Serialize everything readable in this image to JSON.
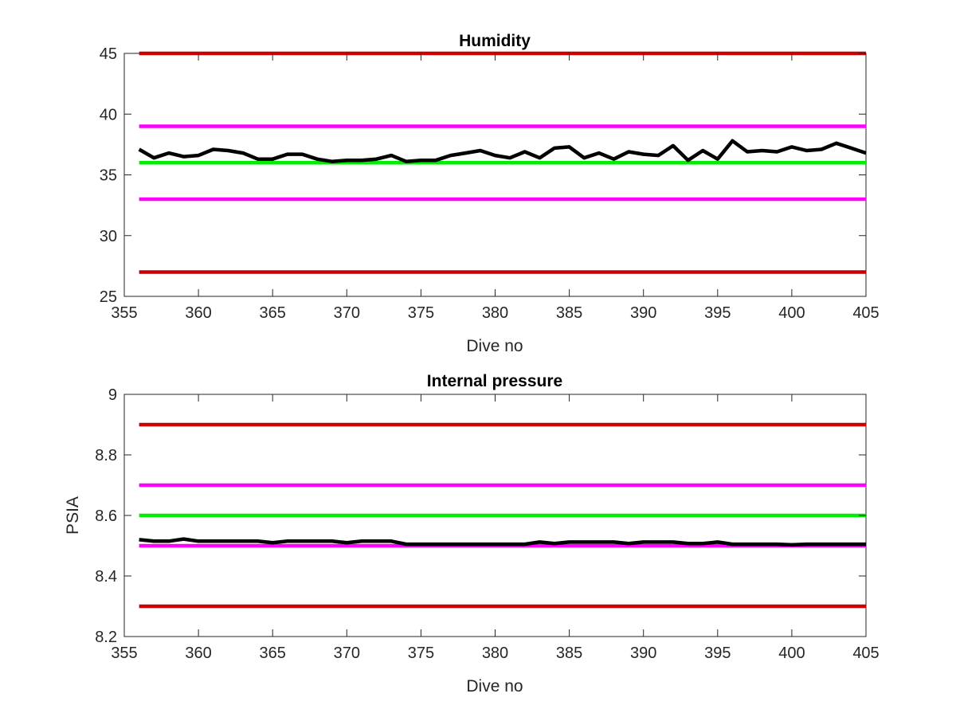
{
  "chart_data": [
    {
      "type": "line",
      "title": "Humidity",
      "xlabel": "Dive no",
      "ylabel": "",
      "xlim": [
        355,
        405
      ],
      "ylim": [
        25,
        45
      ],
      "xticks": [
        355,
        360,
        365,
        370,
        375,
        380,
        385,
        390,
        395,
        400,
        405
      ],
      "yticks": [
        25,
        30,
        35,
        40,
        45
      ],
      "grid": false,
      "legend": "none",
      "thresholds": [
        {
          "value": 45,
          "color": "#cc0000"
        },
        {
          "value": 39,
          "color": "#ff00ff"
        },
        {
          "value": 36,
          "color": "#00ee00"
        },
        {
          "value": 33,
          "color": "#ff00ff"
        },
        {
          "value": 27,
          "color": "#cc0000"
        }
      ],
      "series": [
        {
          "color": "#000000",
          "x": [
            356,
            357,
            358,
            359,
            360,
            361,
            362,
            363,
            364,
            365,
            366,
            367,
            368,
            369,
            370,
            371,
            372,
            373,
            374,
            375,
            376,
            377,
            378,
            379,
            380,
            381,
            382,
            383,
            384,
            385,
            386,
            387,
            388,
            389,
            390,
            391,
            392,
            393,
            394,
            395,
            396,
            397,
            398,
            399,
            400,
            401,
            402,
            403,
            404,
            405
          ],
          "y": [
            37.1,
            36.4,
            36.8,
            36.5,
            36.6,
            37.1,
            37.0,
            36.8,
            36.3,
            36.3,
            36.7,
            36.7,
            36.3,
            36.1,
            36.2,
            36.2,
            36.3,
            36.6,
            36.1,
            36.2,
            36.2,
            36.6,
            36.8,
            37.0,
            36.6,
            36.4,
            36.9,
            36.4,
            37.2,
            37.3,
            36.4,
            36.8,
            36.3,
            36.9,
            36.7,
            36.6,
            37.4,
            36.2,
            37.0,
            36.3,
            37.8,
            36.9,
            37.0,
            36.9,
            37.3,
            37.0,
            37.1,
            37.6,
            37.2,
            36.8
          ]
        }
      ]
    },
    {
      "type": "line",
      "title": "Internal pressure",
      "xlabel": "Dive no",
      "ylabel": "PSIA",
      "xlim": [
        355,
        405
      ],
      "ylim": [
        8.2,
        9
      ],
      "xticks": [
        355,
        360,
        365,
        370,
        375,
        380,
        385,
        390,
        395,
        400,
        405
      ],
      "yticks": [
        "8.2",
        "8.4",
        "8.6",
        "8.8",
        "9"
      ],
      "grid": false,
      "legend": "none",
      "thresholds": [
        {
          "value": 8.9,
          "color": "#cc0000"
        },
        {
          "value": 8.7,
          "color": "#ff00ff"
        },
        {
          "value": 8.6,
          "color": "#00ee00"
        },
        {
          "value": 8.5,
          "color": "#ff00ff"
        },
        {
          "value": 8.3,
          "color": "#cc0000"
        }
      ],
      "series": [
        {
          "color": "#000000",
          "x": [
            356,
            357,
            358,
            359,
            360,
            361,
            362,
            363,
            364,
            365,
            366,
            367,
            368,
            369,
            370,
            371,
            372,
            373,
            374,
            375,
            376,
            377,
            378,
            379,
            380,
            381,
            382,
            383,
            384,
            385,
            386,
            387,
            388,
            389,
            390,
            391,
            392,
            393,
            394,
            395,
            396,
            397,
            398,
            399,
            400,
            401,
            402,
            403,
            404,
            405
          ],
          "y": [
            8.52,
            8.515,
            8.515,
            8.522,
            8.515,
            8.515,
            8.515,
            8.515,
            8.515,
            8.51,
            8.515,
            8.515,
            8.515,
            8.515,
            8.51,
            8.515,
            8.515,
            8.515,
            8.505,
            8.505,
            8.505,
            8.505,
            8.505,
            8.505,
            8.505,
            8.505,
            8.505,
            8.512,
            8.507,
            8.512,
            8.512,
            8.512,
            8.512,
            8.507,
            8.512,
            8.512,
            8.512,
            8.507,
            8.507,
            8.512,
            8.505,
            8.505,
            8.505,
            8.505,
            8.503,
            8.505,
            8.505,
            8.505,
            8.505,
            8.505
          ]
        }
      ]
    }
  ]
}
